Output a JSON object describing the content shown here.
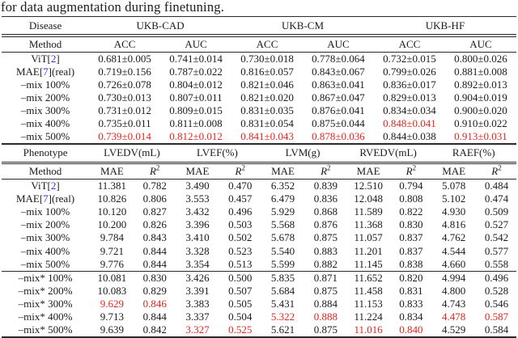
{
  "caption": "for data augmentation during finetuning.",
  "colors": {
    "highlight_red": "#e0251f",
    "citation_blue": "#2d3bd3",
    "text": "#1b1b1b",
    "rule": "#2a2a2a"
  },
  "table1": {
    "corner": "Disease",
    "method_label": "Method",
    "groups": [
      "UKB-CAD",
      "UKB-CM",
      "UKB-HF"
    ],
    "metrics": [
      "ACC",
      "AUC",
      "ACC",
      "AUC",
      "ACC",
      "AUC"
    ],
    "rows": [
      {
        "method": {
          "pre": "ViT[",
          "cite": "2",
          "post": "]"
        },
        "cells": [
          "0.681±0.005",
          "0.741±0.014",
          "0.730±0.018",
          "0.778±0.064",
          "0.732±0.015",
          "0.800±0.026"
        ],
        "red": []
      },
      {
        "method": {
          "pre": "MAE[",
          "cite": "7",
          "post": "](real)"
        },
        "cells": [
          "0.719±0.156",
          "0.787±0.022",
          "0.816±0.057",
          "0.843±0.067",
          "0.799±0.026",
          "0.881±0.008"
        ],
        "red": []
      },
      {
        "method": {
          "pre": "–mix 100%"
        },
        "cells": [
          "0.726±0.078",
          "0.804±0.012",
          "0.821±0.046",
          "0.863±0.041",
          "0.836±0.017",
          "0.892±0.013"
        ],
        "red": []
      },
      {
        "method": {
          "pre": "–mix 200%"
        },
        "cells": [
          "0.730±0.013",
          "0.807±0.011",
          "0.821±0.020",
          "0.867±0.047",
          "0.829±0.013",
          "0.904±0.019"
        ],
        "red": []
      },
      {
        "method": {
          "pre": "–mix 300%"
        },
        "cells": [
          "0.731±0.012",
          "0.809±0.015",
          "0.831±0.035",
          "0.876±0.041",
          "0.834±0.034",
          "0.900±0.020"
        ],
        "red": []
      },
      {
        "method": {
          "pre": "–mix 400%"
        },
        "cells": [
          "0.735±0.011",
          "0.811±0.008",
          "0.831±0.054",
          "0.875±0.044",
          "0.848±0.041",
          "0.910±0.022"
        ],
        "red": [
          4
        ]
      },
      {
        "method": {
          "pre": "–mix 500%"
        },
        "cells": [
          "0.739±0.014",
          "0.812±0.012",
          "0.841±0.043",
          "0.878±0.036",
          "0.844±0.038",
          "0.913±0.031"
        ],
        "red": [
          0,
          1,
          2,
          3,
          5
        ]
      }
    ]
  },
  "table2": {
    "corner": "Phenotype",
    "method_label": "Method",
    "groups": [
      "LVEDV(mL)",
      "LVEF(%)",
      "LVM(g)",
      "RVEDV(mL)",
      "RAEF(%)"
    ],
    "mae_label": "MAE",
    "r2": {
      "base": "R",
      "sup": "2"
    },
    "rows": [
      {
        "method": {
          "pre": "ViT[",
          "cite": "2",
          "post": "]"
        },
        "cells": [
          "11.381",
          "0.782",
          "3.490",
          "0.470",
          "6.352",
          "0.839",
          "12.510",
          "0.794",
          "5.078",
          "0.484"
        ],
        "red": []
      },
      {
        "method": {
          "pre": "MAE[",
          "cite": "7",
          "post": "](real)"
        },
        "cells": [
          "10.826",
          "0.806",
          "3.553",
          "0.457",
          "6.479",
          "0.836",
          "12.048",
          "0.808",
          "5.102",
          "0.474"
        ],
        "red": []
      },
      {
        "method": {
          "pre": "–mix 100%"
        },
        "cells": [
          "10.120",
          "0.827",
          "3.432",
          "0.496",
          "5.929",
          "0.868",
          "11.589",
          "0.822",
          "4.930",
          "0.509"
        ],
        "red": []
      },
      {
        "method": {
          "pre": "–mix 200%"
        },
        "cells": [
          "10.200",
          "0.826",
          "3.396",
          "0.503",
          "5.568",
          "0.876",
          "11.368",
          "0.830",
          "4.816",
          "0.527"
        ],
        "red": []
      },
      {
        "method": {
          "pre": "–mix 300%"
        },
        "cells": [
          "9.784",
          "0.843",
          "3.410",
          "0.502",
          "5.678",
          "0.875",
          "11.057",
          "0.837",
          "4.762",
          "0.542"
        ],
        "red": []
      },
      {
        "method": {
          "pre": "–mix 400%"
        },
        "cells": [
          "9.721",
          "0.844",
          "3.328",
          "0.523",
          "5.540",
          "0.883",
          "11.201",
          "0.837",
          "4.544",
          "0.577"
        ],
        "red": []
      },
      {
        "method": {
          "pre": "–mix 500%"
        },
        "cells": [
          "9.776",
          "0.844",
          "3.354",
          "0.513",
          "5.599",
          "0.882",
          "11.145",
          "0.838",
          "4.660",
          "0.558"
        ],
        "red": []
      },
      {
        "method": {
          "pre": "–mix* 100%"
        },
        "section": true,
        "cells": [
          "10.081",
          "0.830",
          "3.426",
          "0.500",
          "5.835",
          "0.871",
          "11.652",
          "0.820",
          "4.994",
          "0.496"
        ],
        "red": []
      },
      {
        "method": {
          "pre": "–mix* 200%"
        },
        "cells": [
          "10.083",
          "0.829",
          "3.391",
          "0.507",
          "5.684",
          "0.875",
          "11.458",
          "0.831",
          "4.800",
          "0.528"
        ],
        "red": []
      },
      {
        "method": {
          "pre": "–mix* 300%"
        },
        "cells": [
          "9.629",
          "0.846",
          "3.383",
          "0.505",
          "5.431",
          "0.884",
          "11.153",
          "0.833",
          "4.743",
          "0.546"
        ],
        "red": [
          0,
          1
        ]
      },
      {
        "method": {
          "pre": "–mix* 400%"
        },
        "cells": [
          "9.713",
          "0.844",
          "3.337",
          "0.504",
          "5.322",
          "0.888",
          "11.224",
          "0.834",
          "4.478",
          "0.587"
        ],
        "red": [
          4,
          5,
          8,
          9
        ]
      },
      {
        "method": {
          "pre": "–mix* 500%"
        },
        "cells": [
          "9.639",
          "0.842",
          "3.327",
          "0.525",
          "5.621",
          "0.875",
          "11.016",
          "0.840",
          "4.529",
          "0.584"
        ],
        "red": [
          2,
          3,
          6,
          7
        ]
      }
    ]
  }
}
